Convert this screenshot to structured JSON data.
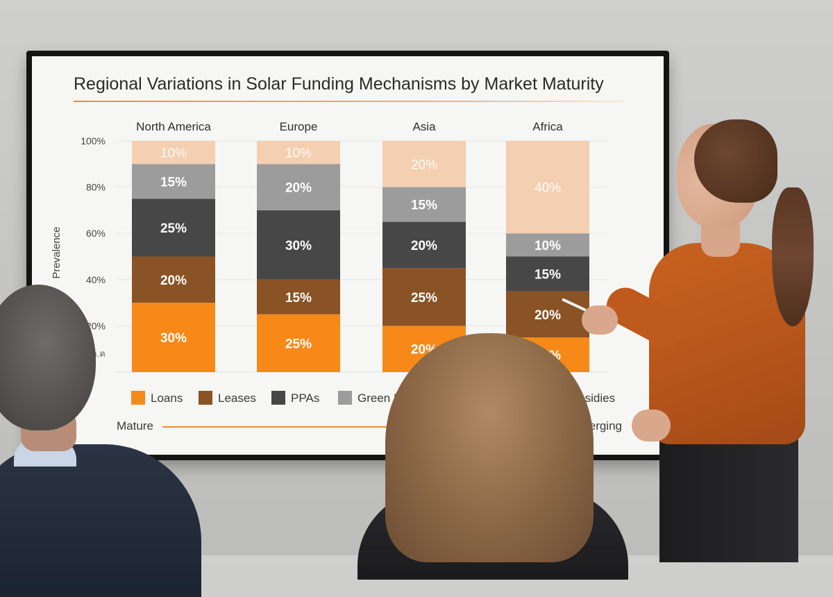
{
  "colors": {
    "loans": "#f78918",
    "leases": "#8a5326",
    "ppas": "#474747",
    "green_bonds": "#9c9c9c",
    "government_subsidies": "#f5cfb1",
    "accent": "#f28c28",
    "background": "#f6f6f5"
  },
  "chart_data": {
    "type": "bar",
    "stacked": true,
    "title": "Regional Variations in Solar Funding Mechanisms by Market Maturity",
    "ylabel": "Prevalence",
    "ylim": [
      0,
      100
    ],
    "yticks": [
      "100%",
      "80%",
      "60%",
      "40%",
      "20%"
    ],
    "yticks_values": [
      100,
      80,
      60,
      40,
      20
    ],
    "y_bottom_tick_label": "ค.ค",
    "categories": [
      "North America",
      "Europe",
      "Asia",
      "Africa"
    ],
    "series": [
      {
        "name": "Loans",
        "values": [
          30,
          25,
          20,
          15
        ],
        "color": "#f78918"
      },
      {
        "name": "Leases",
        "values": [
          20,
          15,
          25,
          20
        ],
        "color": "#8a5326"
      },
      {
        "name": "PPAs",
        "values": [
          25,
          30,
          20,
          15
        ],
        "color": "#474747"
      },
      {
        "name": "Green Bonds",
        "values": [
          15,
          20,
          15,
          10
        ],
        "color": "#9c9c9c"
      },
      {
        "name": "ent Subsidies",
        "values": [
          10,
          10,
          20,
          40
        ],
        "color": "#f5cfb1"
      }
    ],
    "value_label_suffix": "%",
    "legend_placement": "bottom",
    "grid": true,
    "annotation": {
      "left_label": "Mature",
      "right_label": "Emerging"
    }
  }
}
